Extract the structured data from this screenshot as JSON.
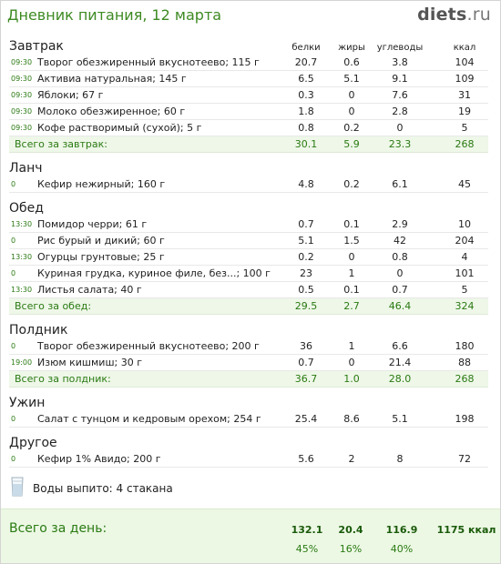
{
  "header": {
    "title": "Дневник питания, 12 марта",
    "logo_main": "diets",
    "logo_dot": ".",
    "logo_tld": "ru"
  },
  "columns": {
    "protein": "белки",
    "fat": "жиры",
    "carbs": "углеводы",
    "kcal": "ккал"
  },
  "meals": [
    {
      "name": "Завтрак",
      "items": [
        {
          "time": "09:30",
          "name": "Творог обезжиренный вкуснотеево; 115 г",
          "protein": "20.7",
          "fat": "0.6",
          "carbs": "3.8",
          "kcal": "104"
        },
        {
          "time": "09:30",
          "name": "Активиа натуральная; 145 г",
          "protein": "6.5",
          "fat": "5.1",
          "carbs": "9.1",
          "kcal": "109"
        },
        {
          "time": "09:30",
          "name": "Яблоки; 67 г",
          "protein": "0.3",
          "fat": "0",
          "carbs": "7.6",
          "kcal": "31"
        },
        {
          "time": "09:30",
          "name": "Молоко обезжиренное; 60 г",
          "protein": "1.8",
          "fat": "0",
          "carbs": "2.8",
          "kcal": "19"
        },
        {
          "time": "09:30",
          "name": "Кофе растворимый (сухой); 5 г",
          "protein": "0.8",
          "fat": "0.2",
          "carbs": "0",
          "kcal": "5"
        }
      ],
      "total": {
        "label": "Всего за завтрак:",
        "protein": "30.1",
        "fat": "5.9",
        "carbs": "23.3",
        "kcal": "268"
      }
    },
    {
      "name": "Ланч",
      "items": [
        {
          "time": "0",
          "name": "Кефир нежирный; 160 г",
          "protein": "4.8",
          "fat": "0.2",
          "carbs": "6.1",
          "kcal": "45"
        }
      ]
    },
    {
      "name": "Обед",
      "items": [
        {
          "time": "13:30",
          "name": "Помидор черри; 61 г",
          "protein": "0.7",
          "fat": "0.1",
          "carbs": "2.9",
          "kcal": "10"
        },
        {
          "time": "0",
          "name": "Рис бурый и дикий; 60 г",
          "protein": "5.1",
          "fat": "1.5",
          "carbs": "42",
          "kcal": "204"
        },
        {
          "time": "13:30",
          "name": "Огурцы грунтовые; 25 г",
          "protein": "0.2",
          "fat": "0",
          "carbs": "0.8",
          "kcal": "4"
        },
        {
          "time": "0",
          "name": "Куриная грудка, куриное филе, без...; 100 г",
          "protein": "23",
          "fat": "1",
          "carbs": "0",
          "kcal": "101"
        },
        {
          "time": "13:30",
          "name": "Листья салата; 40 г",
          "protein": "0.5",
          "fat": "0.1",
          "carbs": "0.7",
          "kcal": "5"
        }
      ],
      "total": {
        "label": "Всего за обед:",
        "protein": "29.5",
        "fat": "2.7",
        "carbs": "46.4",
        "kcal": "324"
      }
    },
    {
      "name": "Полдник",
      "items": [
        {
          "time": "0",
          "name": "Творог обезжиренный вкуснотеево; 200 г",
          "protein": "36",
          "fat": "1",
          "carbs": "6.6",
          "kcal": "180"
        },
        {
          "time": "19:00",
          "name": "Изюм кишмиш; 30 г",
          "protein": "0.7",
          "fat": "0",
          "carbs": "21.4",
          "kcal": "88"
        }
      ],
      "total": {
        "label": "Всего за полдник:",
        "protein": "36.7",
        "fat": "1.0",
        "carbs": "28.0",
        "kcal": "268"
      }
    },
    {
      "name": "Ужин",
      "items": [
        {
          "time": "0",
          "name": "Салат с тунцом и кедровым орехом; 254 г",
          "protein": "25.4",
          "fat": "8.6",
          "carbs": "5.1",
          "kcal": "198"
        }
      ]
    },
    {
      "name": "Другое",
      "items": [
        {
          "time": "0",
          "name": "Кефир 1% Авидо; 200 г",
          "protein": "5.6",
          "fat": "2",
          "carbs": "8",
          "kcal": "72"
        }
      ]
    }
  ],
  "water": {
    "text": "Воды выпито: 4 стакана",
    "icon": "water-glass-icon"
  },
  "day_total": {
    "label": "Всего за день:",
    "protein": "132.1",
    "fat": "20.4",
    "carbs": "116.9",
    "kcal": "1175 ккал",
    "protein_pct": "45%",
    "fat_pct": "16%",
    "carbs_pct": "40%"
  },
  "colors": {
    "accent_green": "#3e8a23",
    "total_bg": "#eef7e8",
    "day_bg": "#ecf8e4"
  }
}
